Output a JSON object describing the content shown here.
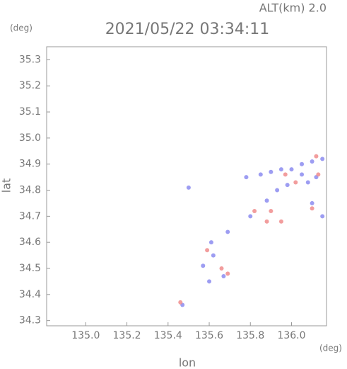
{
  "chart_data": {
    "type": "scatter",
    "title": "2021/05/22 03:34:11",
    "subtitle": "ALT(km) 2.0",
    "y_unit": "(deg)",
    "x_unit": "(deg)",
    "xlabel": "lon",
    "ylabel": "lat",
    "xlim": [
      134.81,
      136.17
    ],
    "ylim": [
      34.28,
      35.35
    ],
    "xticks": [
      {
        "value": 135.0,
        "label": "135.0"
      },
      135.2,
      135.4,
      135.6,
      135.8,
      {
        "value": 136.0,
        "label": "136.0"
      }
    ],
    "yticks": [
      34.3,
      34.4,
      34.5,
      34.6,
      34.7,
      34.8,
      34.9,
      {
        "value": 35.0,
        "label": "35.0"
      },
      35.1,
      35.2,
      35.3
    ],
    "series": [
      {
        "name": null,
        "color": "#8c8cf0",
        "x": [
          135.5,
          135.47,
          135.6,
          135.61,
          135.69,
          135.67,
          135.78,
          135.85,
          135.9,
          135.95,
          136.0,
          136.05,
          136.1,
          136.15,
          136.12,
          136.08,
          135.93,
          135.88,
          136.1,
          136.15,
          135.62,
          135.98,
          136.05,
          135.8,
          135.57
        ],
        "values": [
          34.81,
          34.36,
          34.45,
          34.6,
          34.64,
          34.47,
          34.85,
          34.86,
          34.87,
          34.88,
          34.88,
          34.9,
          34.91,
          34.92,
          34.85,
          34.83,
          34.8,
          34.76,
          34.75,
          34.7,
          34.55,
          34.82,
          34.86,
          34.7,
          34.51
        ]
      },
      {
        "name": null,
        "color": "#f08c8c",
        "x": [
          135.46,
          135.69,
          135.59,
          135.88,
          135.95,
          135.9,
          136.02,
          136.1,
          135.82,
          136.13,
          135.66,
          135.97,
          136.12
        ],
        "values": [
          34.37,
          34.48,
          34.57,
          34.68,
          34.68,
          34.72,
          34.83,
          34.73,
          34.72,
          34.86,
          34.5,
          34.86,
          34.93
        ]
      }
    ]
  }
}
